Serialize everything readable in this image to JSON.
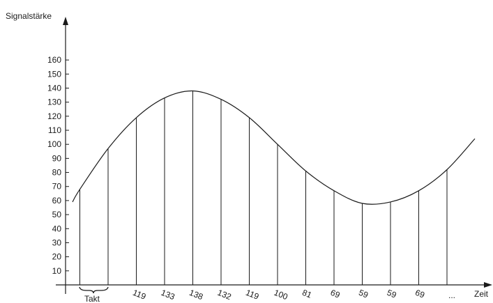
{
  "axes": {
    "y_title": "Signalstärke",
    "x_title": "Zeit",
    "y_ticks": [
      10,
      20,
      30,
      40,
      50,
      60,
      70,
      80,
      90,
      100,
      110,
      120,
      130,
      140,
      150,
      160
    ],
    "period_label": "Takt",
    "ellipsis": "..."
  },
  "samples": [
    {
      "label": "",
      "value": 68
    },
    {
      "label": "",
      "value": 97
    },
    {
      "label": "119",
      "value": 119
    },
    {
      "label": "133",
      "value": 133
    },
    {
      "label": "138",
      "value": 138
    },
    {
      "label": "132",
      "value": 132
    },
    {
      "label": "119",
      "value": 119
    },
    {
      "label": "100",
      "value": 100
    },
    {
      "label": "81",
      "value": 81
    },
    {
      "label": "69",
      "value": 67
    },
    {
      "label": "59",
      "value": 58
    },
    {
      "label": "59",
      "value": 59
    },
    {
      "label": "69",
      "value": 67
    },
    {
      "label": "",
      "value": 82
    }
  ],
  "curve": {
    "start_value": 59,
    "end_value": 104,
    "color": "#1a1a1a"
  }
}
